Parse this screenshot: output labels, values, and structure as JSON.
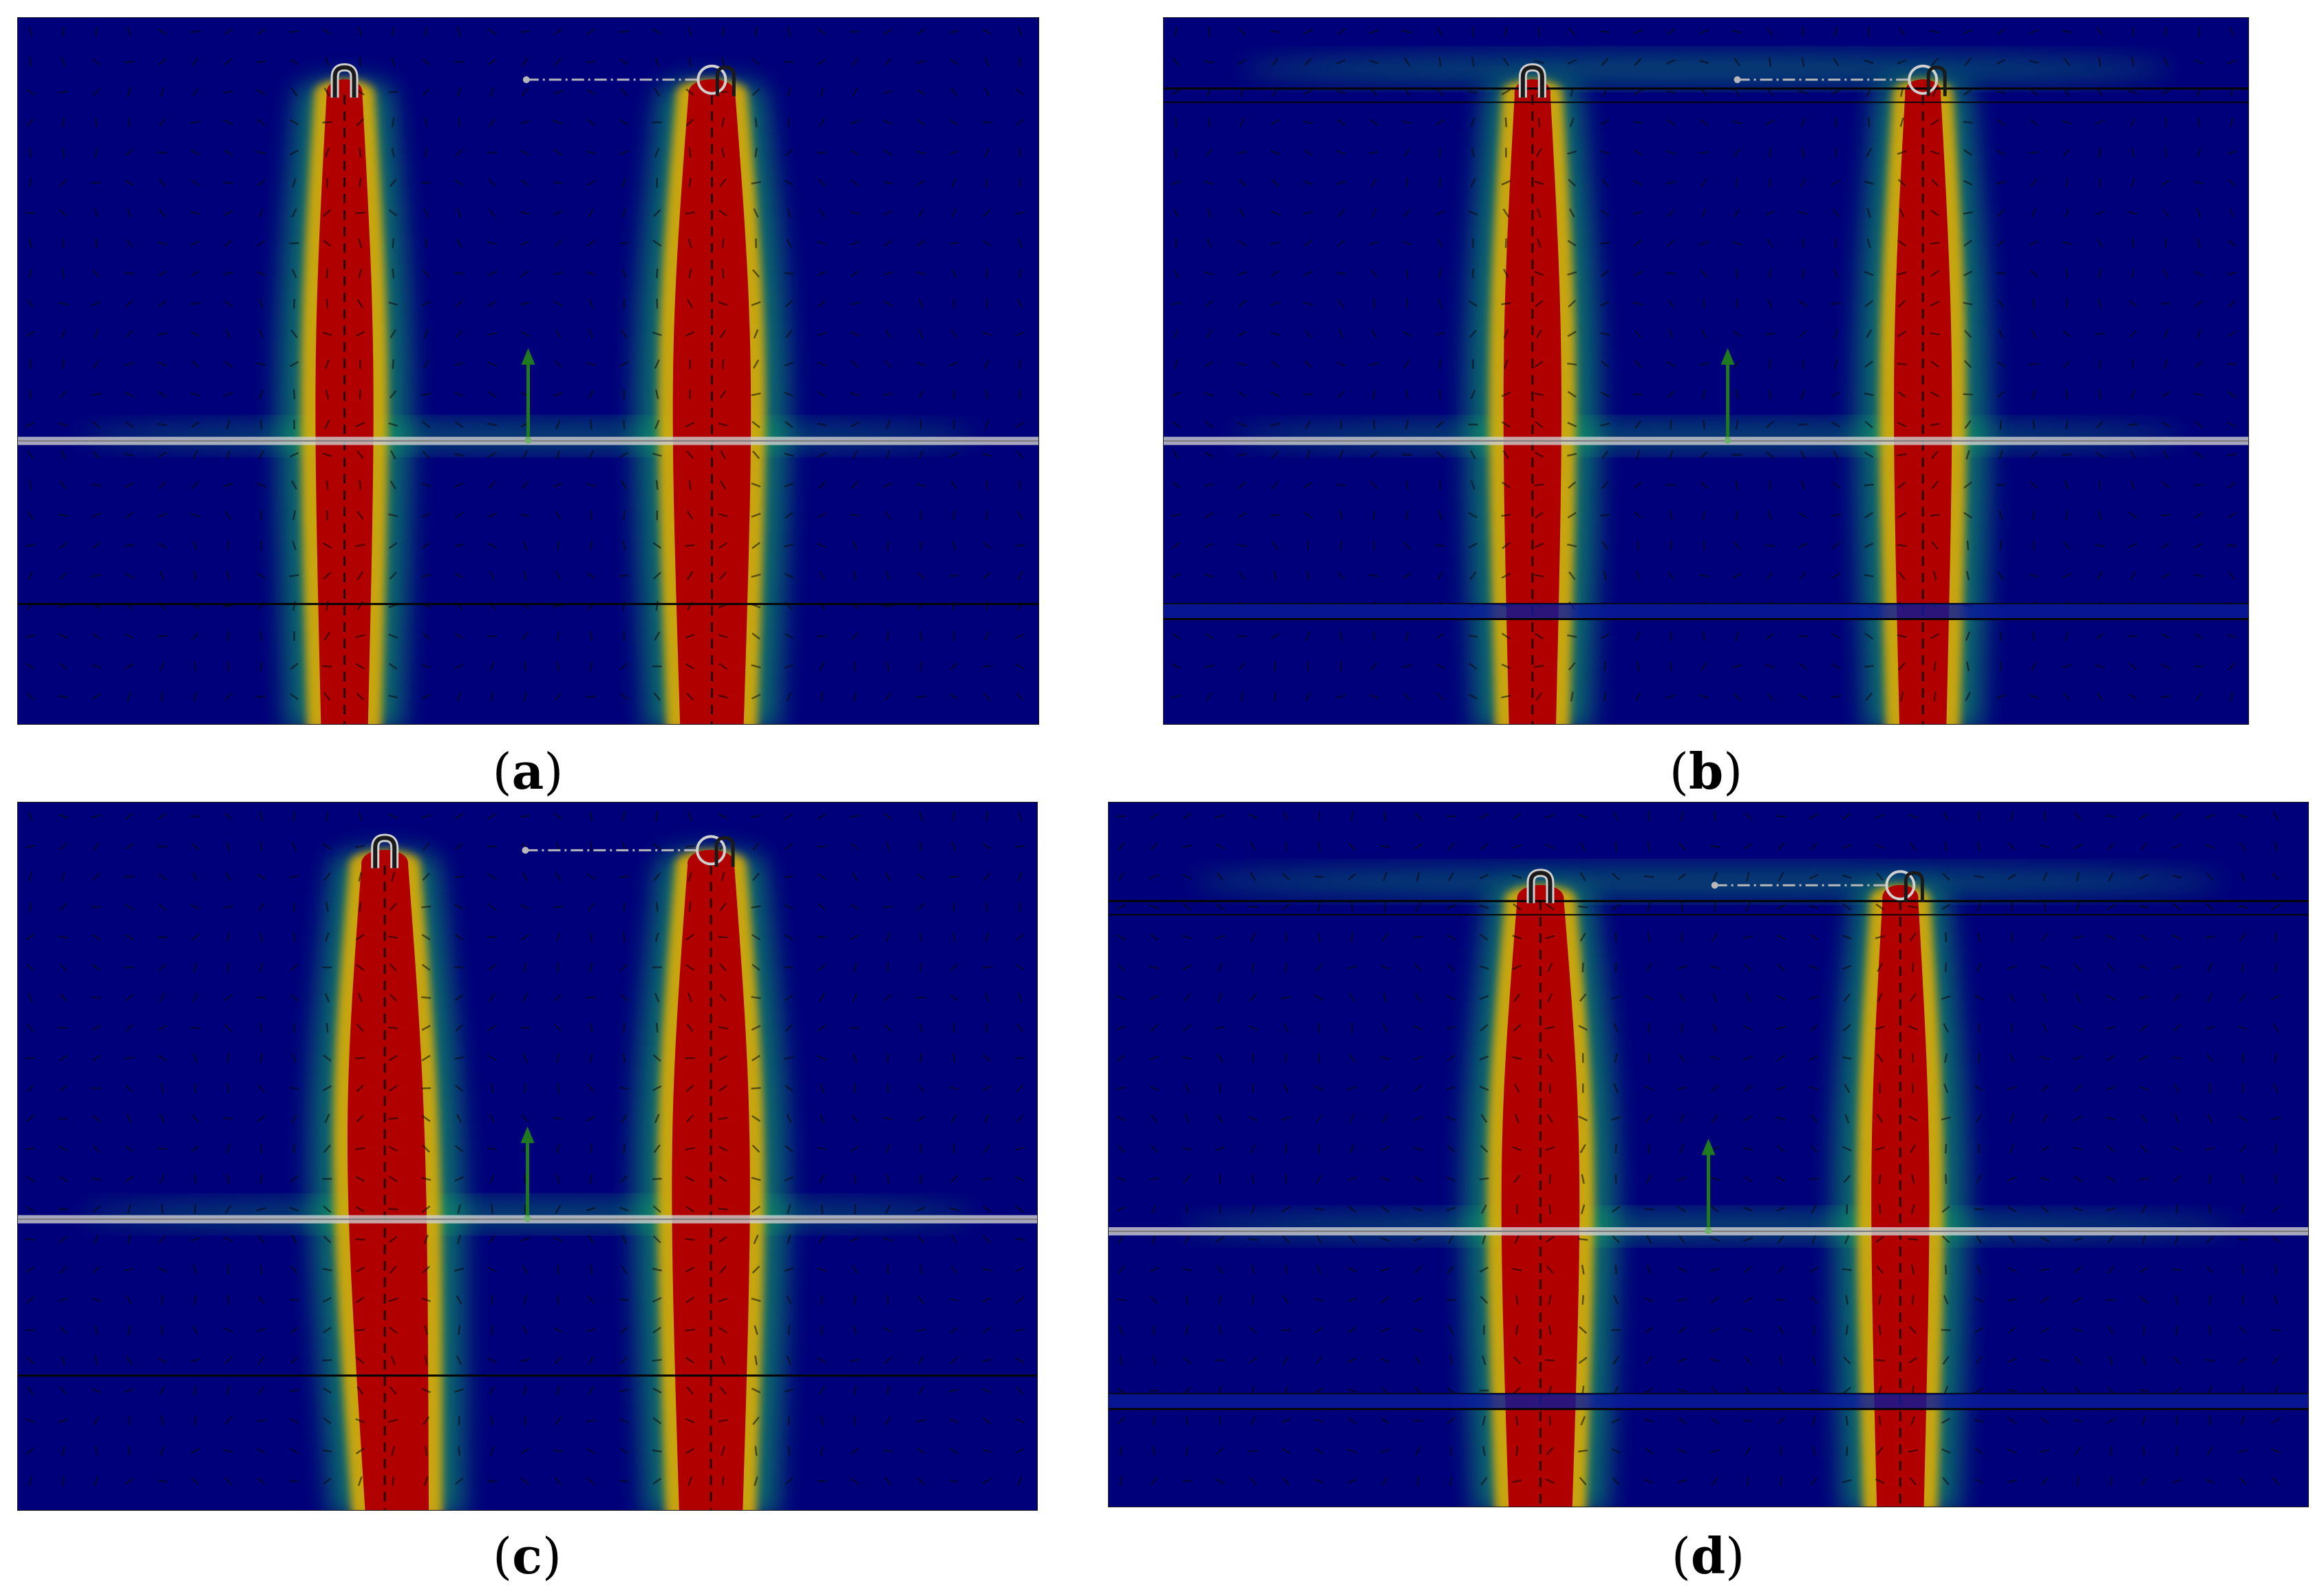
{
  "figure": {
    "panels": [
      {
        "id": "a",
        "label": "a",
        "lid_bar": false,
        "step": false,
        "plume_widths": [
          "narrow",
          "wide"
        ],
        "side_bend": false
      },
      {
        "id": "b",
        "label": "b",
        "lid_bar": true,
        "step": true,
        "plume_widths": [
          "narrow",
          "narrow"
        ],
        "side_bend": false
      },
      {
        "id": "c",
        "label": "c",
        "lid_bar": false,
        "step": false,
        "plume_widths": [
          "wide",
          "wide"
        ],
        "side_bend": true
      },
      {
        "id": "d",
        "label": "d",
        "lid_bar": true,
        "step": true,
        "plume_widths": [
          "wide",
          "narrow"
        ],
        "side_bend": false
      }
    ],
    "caption_open": "(",
    "caption_close": ")",
    "colors": {
      "background": "#00007a",
      "core": "#b00000",
      "mid": "#e8b000",
      "halo": "#18c060",
      "outer": "#0a4ab0",
      "vector": "#0a0a0a",
      "separator": "#cfcfcf",
      "axis": "#1f7a1f"
    },
    "icons": [
      "bracket-icon",
      "ring-icon",
      "axis-arrow-icon"
    ]
  }
}
